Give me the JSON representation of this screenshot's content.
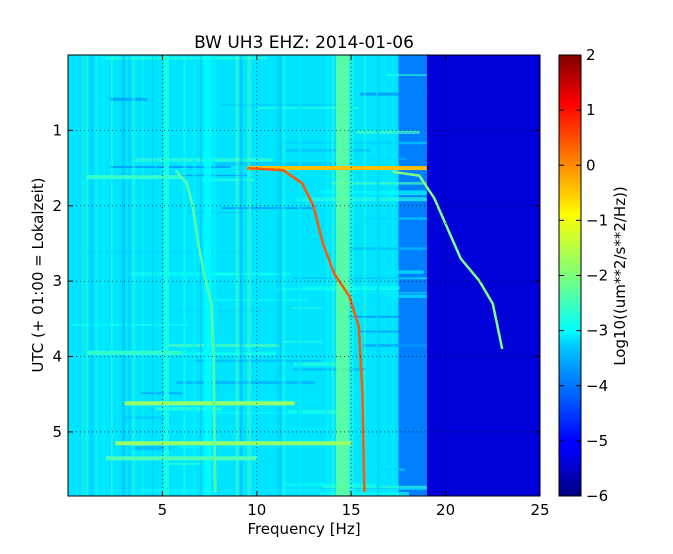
{
  "chart_data": {
    "type": "heatmap",
    "title": "BW UH3 EHZ: 2014-01-06",
    "xlabel": "Frequency [Hz]",
    "ylabel": "UTC (+ 01:00 = Lokalzeit)",
    "xlim": [
      0,
      25
    ],
    "ylim": [
      5.85,
      0
    ],
    "xticks": [
      5,
      10,
      15,
      20,
      25
    ],
    "yticks": [
      1,
      2,
      3,
      4,
      5
    ],
    "grid": true,
    "colormap": "jet",
    "colorbar": {
      "label": "Log10((um**2/s**2/Hz))",
      "range": [
        -6,
        2
      ],
      "ticks": [
        -6,
        -5,
        -4,
        -3,
        -2,
        -1,
        0,
        1,
        2
      ]
    },
    "background_bands": [
      {
        "freq_range": [
          0,
          17.5
        ],
        "level": -3.2
      },
      {
        "freq_range": [
          17.5,
          19
        ],
        "level": -4.0
      },
      {
        "freq_range": [
          19,
          25
        ],
        "level": -5.3
      }
    ],
    "tremor_lines": [
      {
        "freq_range": [
          14.2,
          14.9
        ],
        "level": -2.2
      },
      {
        "freq_range": [
          5.1,
          5.35
        ],
        "level": -2.8
      },
      {
        "freq_range": [
          7.2,
          7.6
        ],
        "level": -3.0
      }
    ],
    "gliding_tones": [
      {
        "name": "fundamental",
        "points": [
          [
            5.7,
            1.53
          ],
          [
            6.3,
            1.7
          ],
          [
            6.6,
            2.0
          ],
          [
            6.9,
            2.5
          ],
          [
            7.2,
            2.9
          ],
          [
            7.6,
            3.3
          ],
          [
            7.7,
            4.0
          ],
          [
            7.8,
            5.8
          ]
        ],
        "level": -2.3
      },
      {
        "name": "second harmonic",
        "points": [
          [
            9.5,
            1.5
          ],
          [
            11.4,
            1.53
          ],
          [
            12.4,
            1.7
          ],
          [
            13.0,
            2.0
          ],
          [
            13.5,
            2.5
          ],
          [
            14.1,
            2.9
          ],
          [
            14.9,
            3.2
          ],
          [
            15.4,
            3.6
          ],
          [
            15.6,
            4.5
          ],
          [
            15.7,
            5.8
          ]
        ],
        "level": 0.3
      },
      {
        "name": "third harmonic",
        "points": [
          [
            17.2,
            1.55
          ],
          [
            18.6,
            1.6
          ],
          [
            19.4,
            1.9
          ],
          [
            20.1,
            2.3
          ],
          [
            20.8,
            2.7
          ],
          [
            21.8,
            3.0
          ],
          [
            22.5,
            3.3
          ],
          [
            23.0,
            3.9
          ]
        ],
        "level": -2.0
      }
    ],
    "horizontal_bursts": [
      {
        "time": 1.5,
        "freq_range": [
          9.5,
          19
        ],
        "level": -0.5
      },
      {
        "time": 4.62,
        "freq_range": [
          3.0,
          12.0
        ],
        "level": -1.8
      },
      {
        "time": 5.15,
        "freq_range": [
          2.5,
          15.0
        ],
        "level": -1.8
      },
      {
        "time": 5.35,
        "freq_range": [
          2.0,
          10.0
        ],
        "level": -2.4
      },
      {
        "time": 3.95,
        "freq_range": [
          1.0,
          6.0
        ],
        "level": -2.6
      },
      {
        "time": 1.62,
        "freq_range": [
          1.0,
          6.0
        ],
        "level": -2.6
      }
    ]
  }
}
